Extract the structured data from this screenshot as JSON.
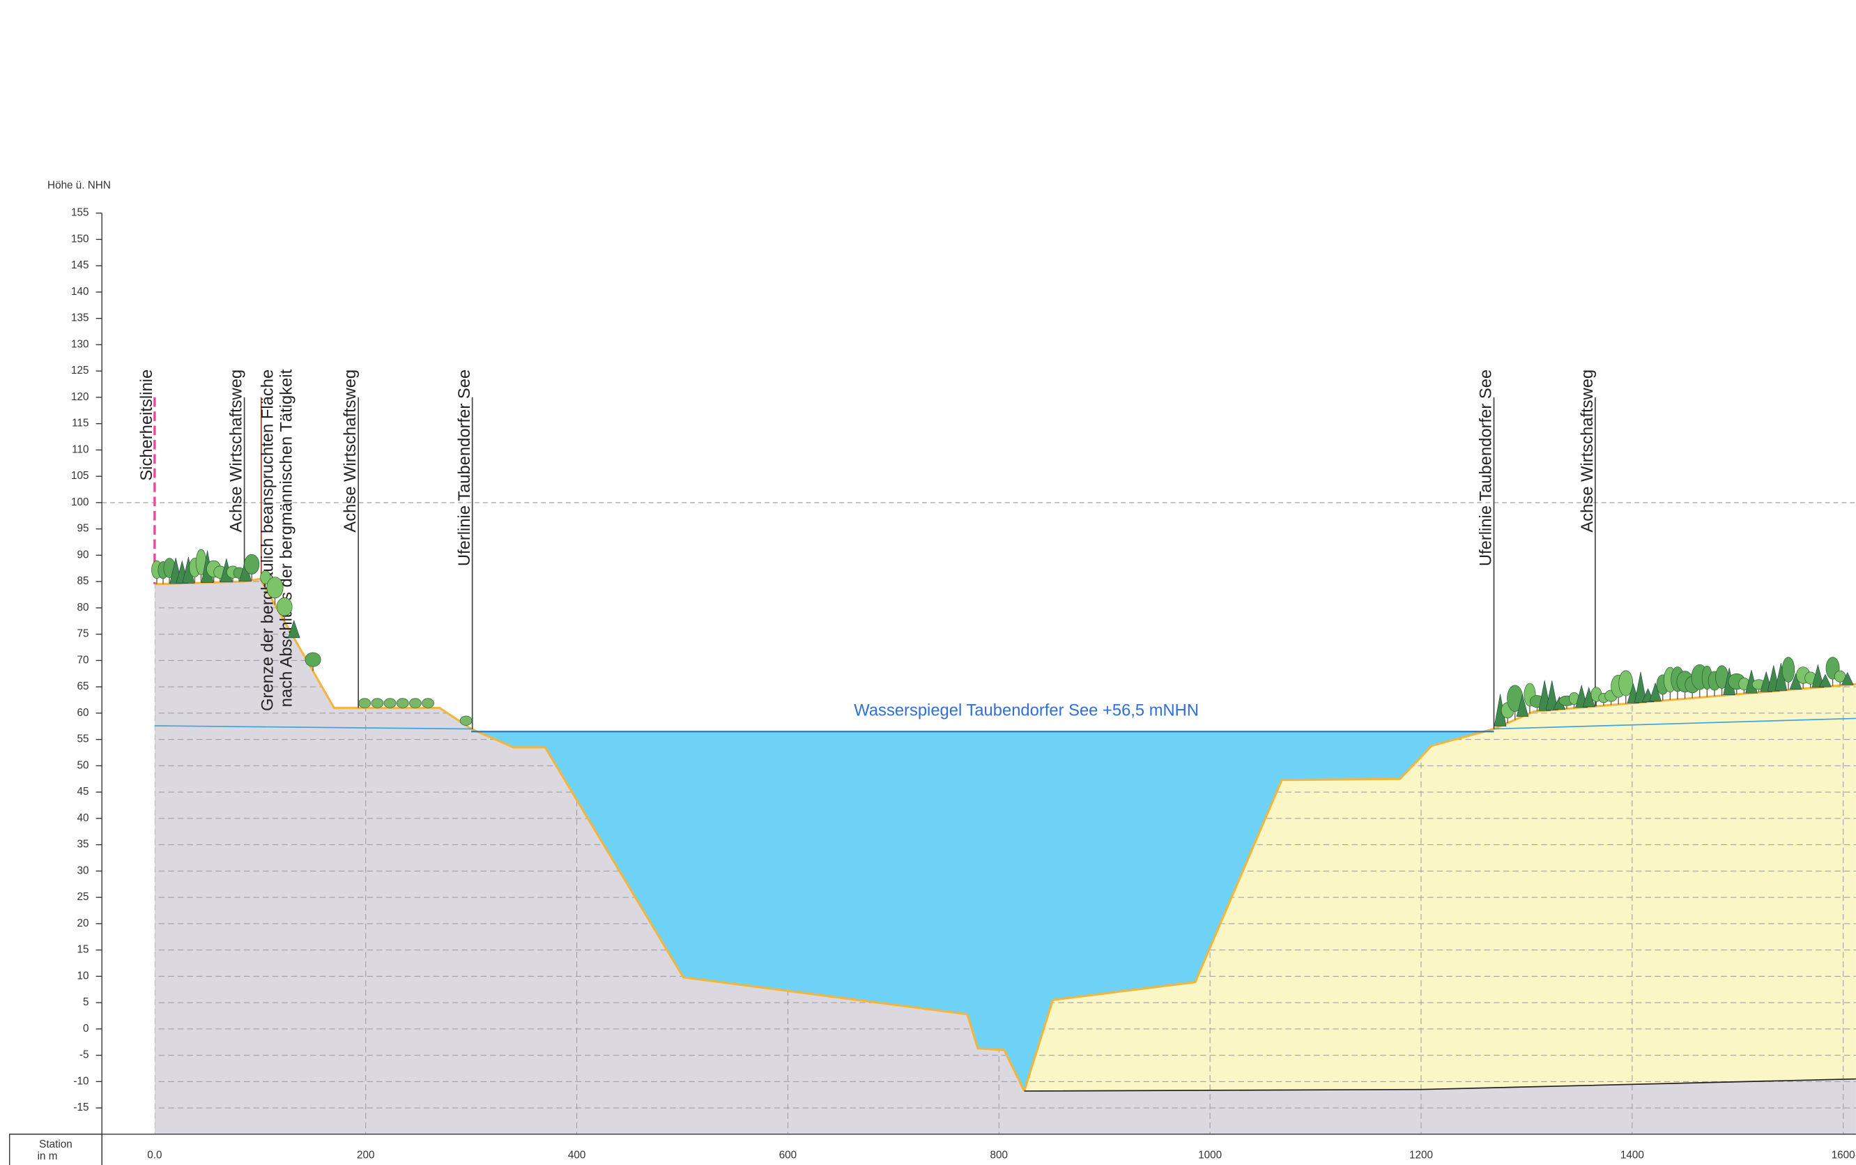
{
  "chart_data": {
    "type": "profile",
    "y_axis_label": "Höhe ü. NHN",
    "x_axis_label": [
      "Station",
      "in m"
    ],
    "xlim": [
      -50,
      1612
    ],
    "ylim": [
      -20,
      155
    ],
    "xticks": [
      {
        "value": 0,
        "label": "0.0"
      },
      200,
      400,
      600,
      800,
      1000,
      1200,
      1400,
      1600
    ],
    "yticks": [
      -15,
      -10,
      -5,
      0,
      5,
      10,
      15,
      20,
      25,
      30,
      35,
      40,
      45,
      50,
      55,
      60,
      65,
      70,
      75,
      80,
      85,
      90,
      95,
      100,
      105,
      110,
      115,
      120,
      125,
      130,
      135,
      140,
      145,
      150,
      155
    ],
    "reference_line": 100,
    "water_level": 56.5,
    "water_extent": [
      300,
      1269
    ],
    "water_label": "Wasserspiegel Taubendorfer See +56,5 mNHN",
    "water_color": "#6ed3f6",
    "left_ground": {
      "color": "#dcd8df",
      "x": [
        0,
        85,
        100,
        170,
        270,
        300,
        340,
        370,
        501,
        770,
        780,
        805,
        824
      ],
      "values": [
        84.5,
        85,
        85.5,
        61,
        61,
        57,
        53.5,
        53.5,
        9.8,
        2.8,
        -3.7,
        -4,
        -11.8
      ]
    },
    "right_ground": {
      "color": "#faf6c6",
      "x": [
        824,
        851,
        986,
        1068,
        1180,
        1210,
        1269,
        1307,
        1612
      ],
      "values": [
        -11.8,
        5.5,
        8.9,
        47.3,
        47.5,
        53.8,
        57,
        60.3,
        65.5
      ]
    },
    "base_line": {
      "x": [
        824,
        1200,
        1612
      ],
      "values": [
        -11.8,
        -11.5,
        -9.5
      ]
    },
    "groundwater_left": {
      "x": [
        0,
        300
      ],
      "values": [
        57.6,
        57
      ]
    },
    "groundwater_right": {
      "x": [
        1269,
        1612
      ],
      "values": [
        57,
        59
      ]
    },
    "markers": [
      {
        "x": 0,
        "label": "Sicherheitslinie",
        "color": "#e84a9a",
        "dashed": true
      },
      {
        "x": 85,
        "label": "Achse Wirtschaftsweg",
        "color": "#444"
      },
      {
        "x": 101,
        "label": [
          "Grenze der bergbaulich beanspruchten Fläche",
          "nach Abschluss der bergmännischen Tätigkeit"
        ],
        "color": "#9a4a2a"
      },
      {
        "x": 193,
        "label": "Achse Wirtschaftsweg",
        "color": "#444"
      },
      {
        "x": 301,
        "label": "Uferlinie Taubendorfer See",
        "color": "#444"
      },
      {
        "x": 1269,
        "label": "Uferlinie Taubendorfer See",
        "color": "#444"
      },
      {
        "x": 1365,
        "label": "Achse Wirtschaftsweg",
        "color": "#444"
      }
    ],
    "marker_top": 120
  }
}
